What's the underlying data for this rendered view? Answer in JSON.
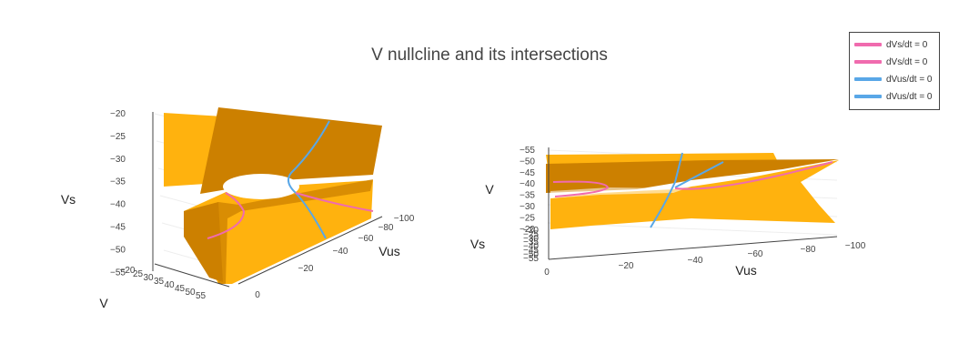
{
  "title": "V nullcline and its intersections",
  "colors": {
    "surface_light": "#FFB20E",
    "surface_dark": "#CC8000",
    "dVs": "#F06BAE",
    "dVus": "#59A7E7",
    "axis": "#444444"
  },
  "legend": [
    {
      "label": "dVs/dt = 0",
      "color": "#F06BAE"
    },
    {
      "label": "dVs/dt = 0",
      "color": "#F06BAE"
    },
    {
      "label": "dVus/dt = 0",
      "color": "#59A7E7"
    },
    {
      "label": "dVus/dt = 0",
      "color": "#59A7E7"
    }
  ],
  "chart_data": [
    {
      "type": "surface",
      "axes": {
        "vs": {
          "label": "Vs",
          "ticks": [
            "−20",
            "−25",
            "−30",
            "−35",
            "−40",
            "−45",
            "−50",
            "−55"
          ]
        },
        "vus": {
          "label": "Vus",
          "ticks": [
            "0",
            "−20",
            "−40",
            "−60",
            "−80",
            "−100"
          ]
        },
        "v": {
          "label": "V",
          "ticks": [
            "−20",
            "25",
            "30",
            "35",
            "40",
            "45",
            "50",
            "55"
          ]
        }
      }
    },
    {
      "type": "surface",
      "axes": {
        "v": {
          "label": "V",
          "ticks": [
            "−55",
            "−50",
            "−45",
            "−40",
            "−35",
            "−30",
            "−25",
            "−20"
          ]
        },
        "vs": {
          "label": "Vs",
          "ticks": [
            "−20",
            "−25",
            "−30",
            "−35",
            "−40",
            "−45",
            "−50",
            "−55"
          ]
        },
        "vus": {
          "label": "Vus",
          "ticks": [
            "0",
            "−20",
            "−40",
            "−60",
            "−80",
            "−100"
          ]
        }
      }
    }
  ]
}
